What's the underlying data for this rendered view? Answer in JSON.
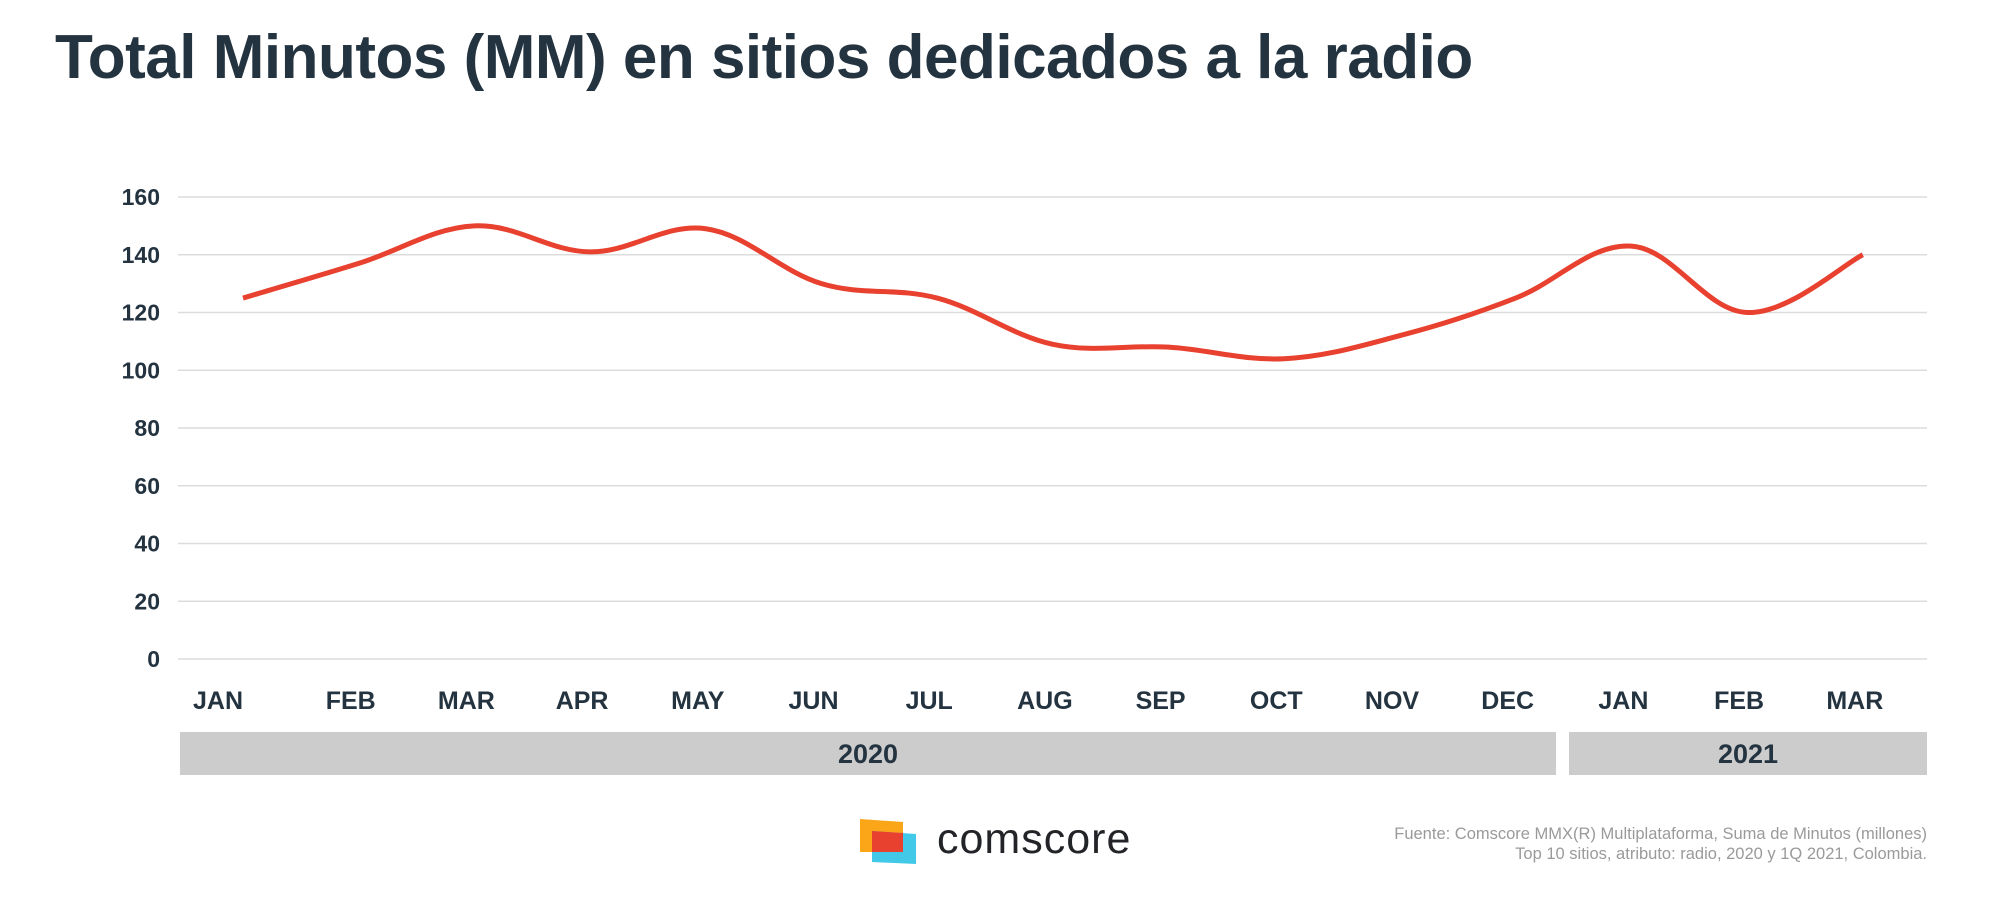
{
  "chart_data": {
    "type": "line",
    "title": "Total Minutos (MM) en sitios dedicados a la radio",
    "xlabel": "",
    "ylabel": "",
    "ylim": [
      0,
      160
    ],
    "yticks": [
      "0",
      "20",
      "40",
      "60",
      "80",
      "100",
      "120",
      "140",
      "160"
    ],
    "grid": true,
    "categories": [
      "JAN",
      "FEB",
      "MAR",
      "APR",
      "MAY",
      "JUN",
      "JUL",
      "AUG",
      "SEP",
      "OCT",
      "NOV",
      "DEC",
      "JAN",
      "FEB",
      "MAR"
    ],
    "year_groups": [
      {
        "label": "2020",
        "count": 12
      },
      {
        "label": "2021",
        "count": 3
      }
    ],
    "series": [
      {
        "name": "Total Minutos (MM)",
        "color": "#e8412f",
        "values": [
          125,
          137,
          150,
          141,
          149,
          130,
          125,
          109,
          108,
          104,
          112,
          125,
          143,
          120,
          140
        ]
      }
    ]
  },
  "brand": {
    "name": "comscore"
  },
  "source": {
    "line1": "Fuente: Comscore MMX(R) Multiplataforma, Suma de Minutos (millones)",
    "line2": "Top 10 sitios, atributo: radio, 2020 y 1Q 2021, Colombia."
  },
  "colors": {
    "text": "#243340",
    "grid": "#dcdcdc",
    "band": "#cccccc",
    "line": "#e8412f"
  }
}
